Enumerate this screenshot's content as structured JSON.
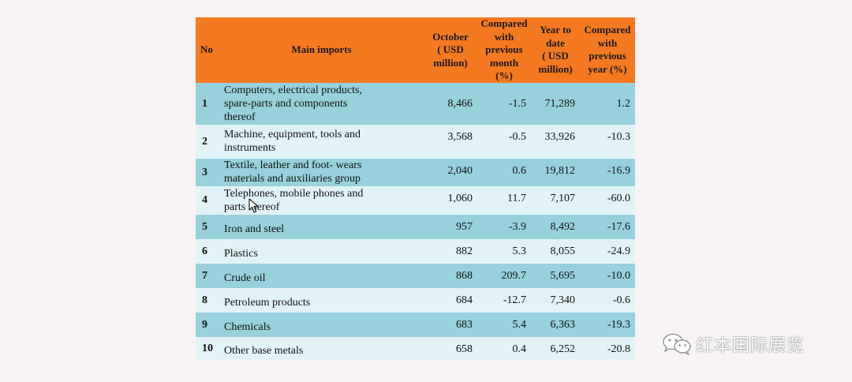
{
  "table": {
    "headers": {
      "no": "No",
      "main_imports": "Main imports",
      "october": [
        "October",
        "( USD",
        "million)"
      ],
      "compared_month": [
        "Compared",
        "with",
        "previous",
        "month",
        "(%)"
      ],
      "year_to_date": [
        "Year to",
        "date",
        "( USD",
        "million)"
      ],
      "compared_year": [
        "Compared",
        "with",
        "previous",
        "year (%)"
      ]
    },
    "rows": [
      {
        "no": "1",
        "name": [
          "Computers, electrical products,",
          "spare-parts and  components",
          "thereof"
        ],
        "october": "8,466",
        "month_pct": "-1.5",
        "ytd": "71,289",
        "year_pct": "1.2"
      },
      {
        "no": "2",
        "name": [
          "Machine, equipment, tools and",
          "instruments"
        ],
        "october": "3,568",
        "month_pct": "-0.5",
        "ytd": "33,926",
        "year_pct": "-10.3"
      },
      {
        "no": "3",
        "name": [
          "Textile, leather and foot- wears",
          "materials and auxiliaries group"
        ],
        "october": "2,040",
        "month_pct": "0.6",
        "ytd": "19,812",
        "year_pct": "-16.9"
      },
      {
        "no": "4",
        "name": [
          "Telephones, mobile phones and",
          "parts thereof"
        ],
        "october": "1,060",
        "month_pct": "11.7",
        "ytd": "7,107",
        "year_pct": "-60.0"
      },
      {
        "no": "5",
        "name": [
          "Iron and steel"
        ],
        "october": "957",
        "month_pct": "-3.9",
        "ytd": "8,492",
        "year_pct": "-17.6"
      },
      {
        "no": "6",
        "name": [
          "Plastics"
        ],
        "october": "882",
        "month_pct": "5.3",
        "ytd": "8,055",
        "year_pct": "-24.9"
      },
      {
        "no": "7",
        "name": [
          "Crude oil"
        ],
        "october": "868",
        "month_pct": "209.7",
        "ytd": "5,695",
        "year_pct": "-10.0"
      },
      {
        "no": "8",
        "name": [
          "Petroleum products"
        ],
        "october": "684",
        "month_pct": "-12.7",
        "ytd": "7,340",
        "year_pct": "-0.6"
      },
      {
        "no": "9",
        "name": [
          "Chemicals"
        ],
        "october": "683",
        "month_pct": "5.4",
        "ytd": "6,363",
        "year_pct": "-19.3"
      },
      {
        "no": "10",
        "name": [
          "Other base metals"
        ],
        "october": "658",
        "month_pct": "0.4",
        "ytd": "6,252",
        "year_pct": "-20.8"
      }
    ]
  },
  "watermark": {
    "text": "红本国际展览",
    "icon": "wechat-icon"
  },
  "colors": {
    "header": "#f47920",
    "row_odd": "#97d1dc",
    "row_even": "#e2f3f8",
    "background": "#f7f3f4"
  }
}
